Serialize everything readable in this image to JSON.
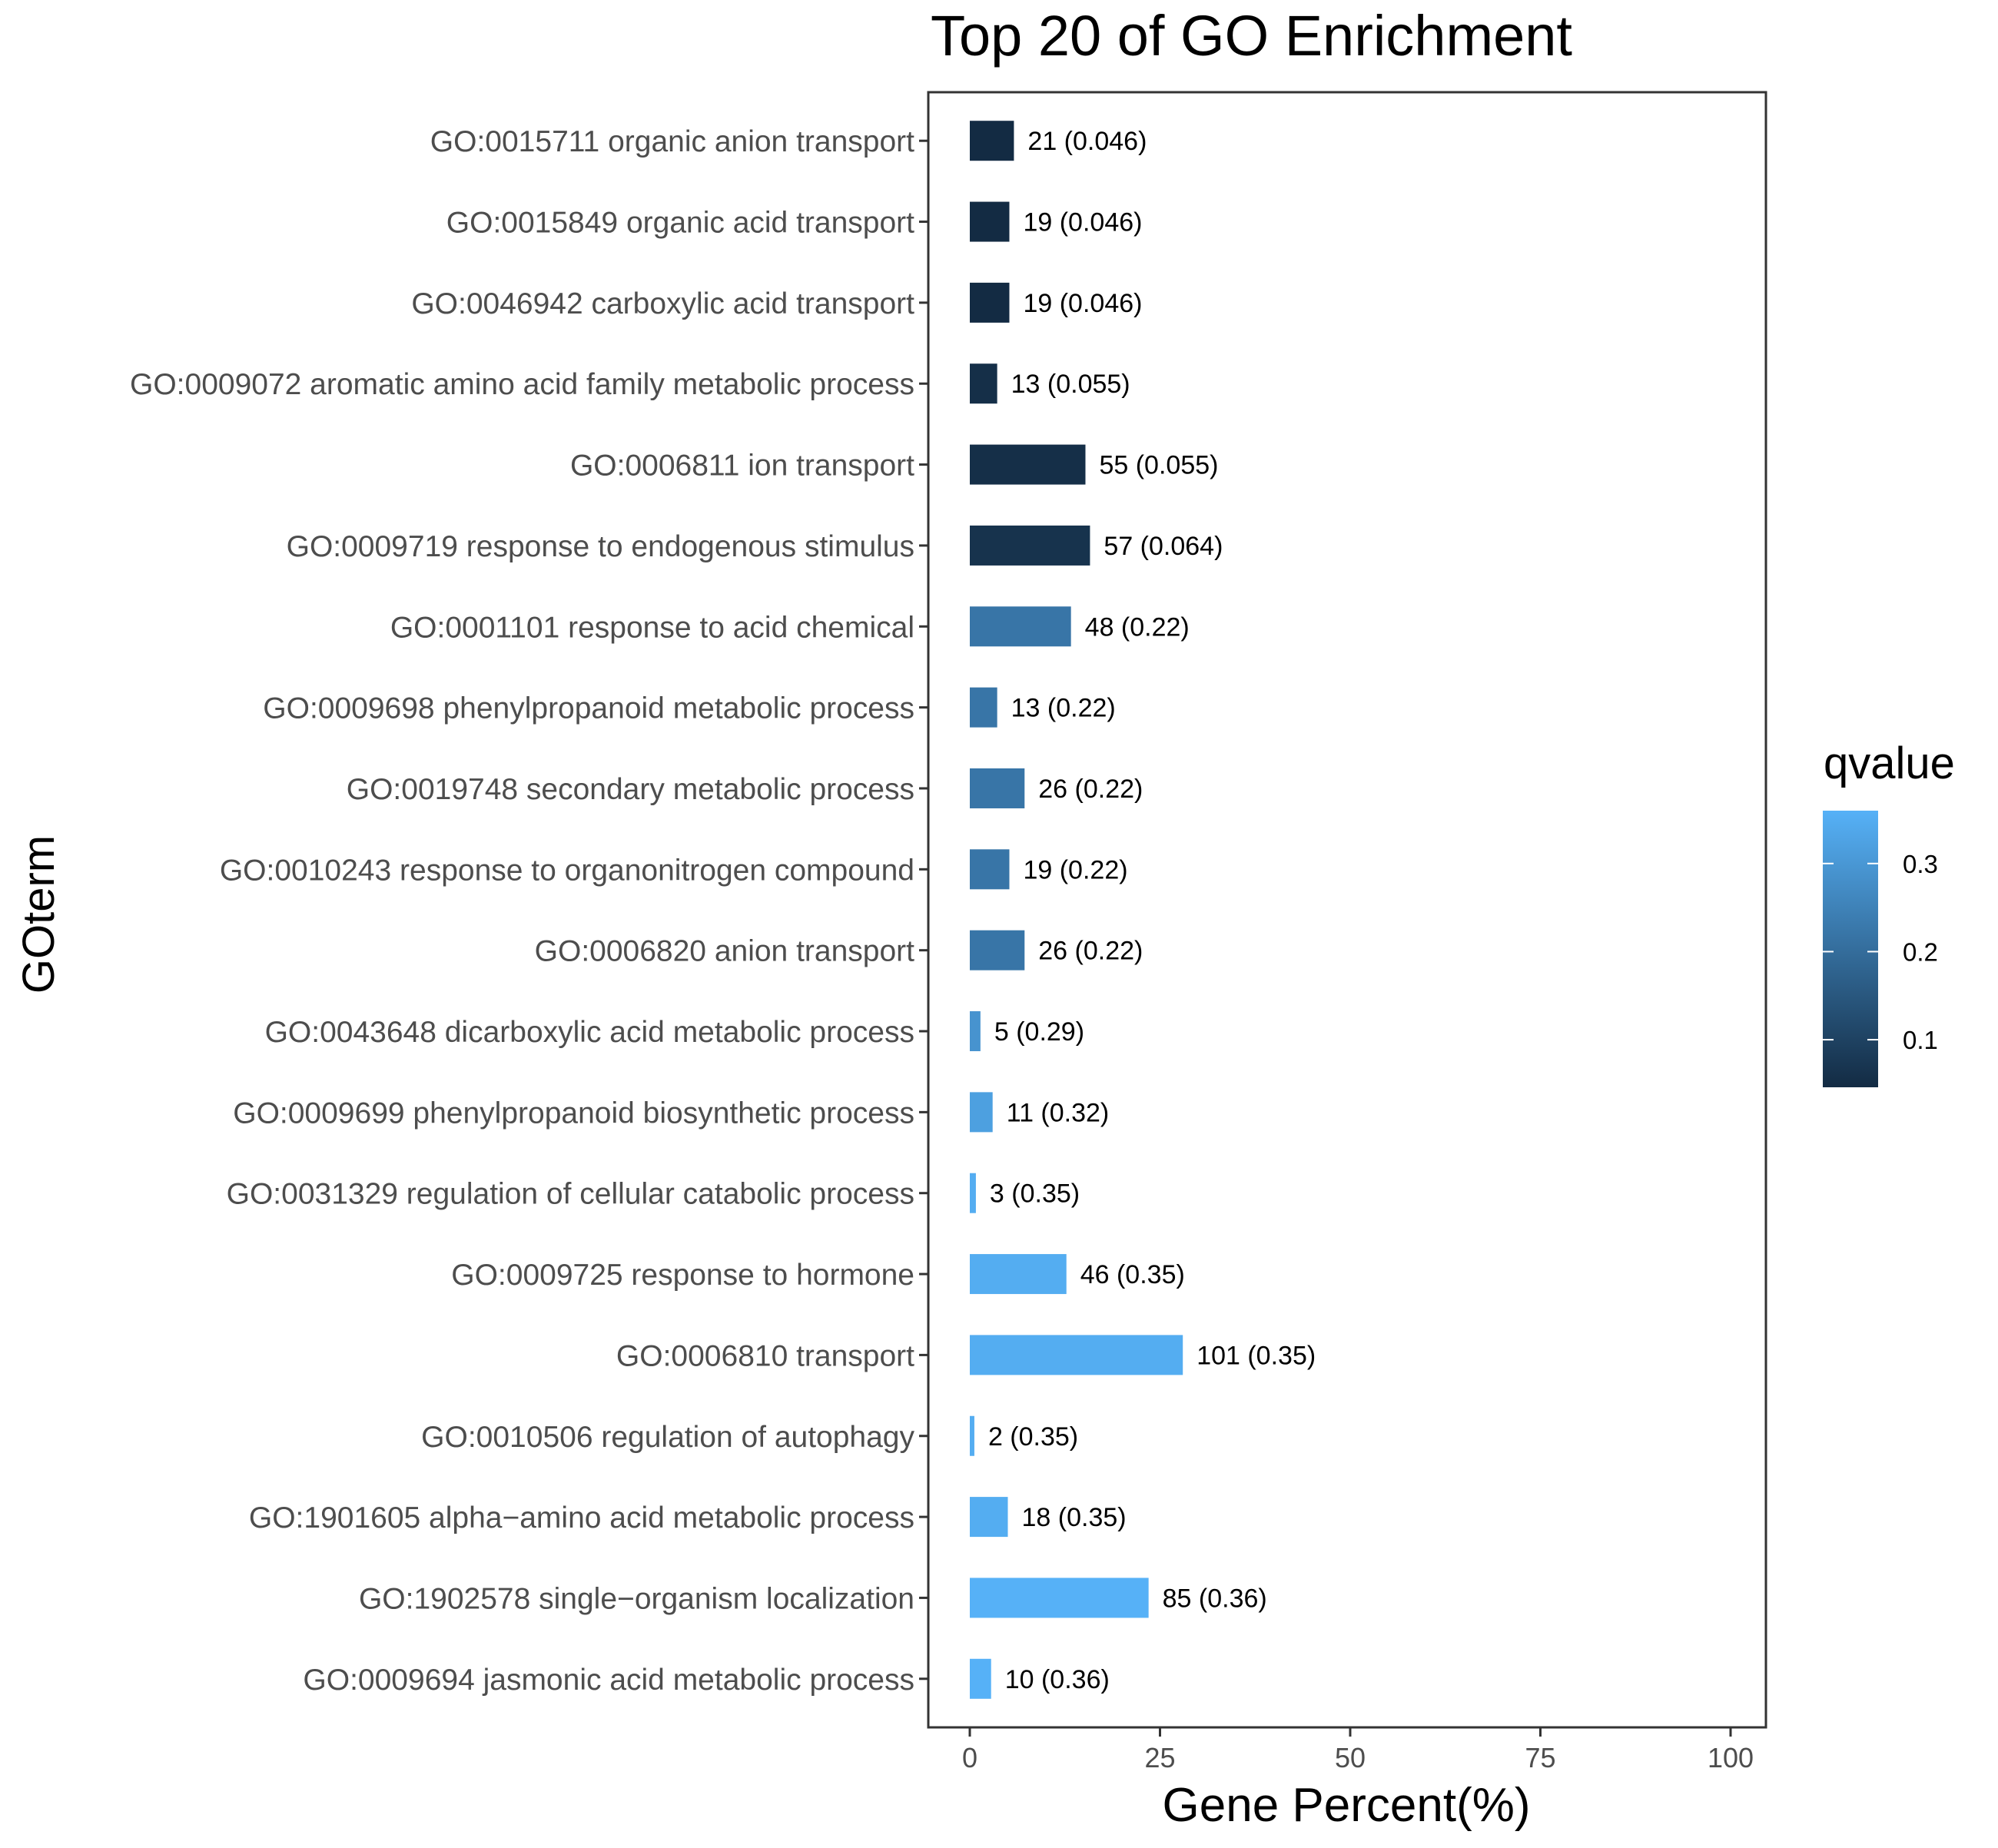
{
  "chart_data": {
    "type": "bar",
    "orientation": "horizontal",
    "title": "Top 20 of GO Enrichment",
    "xlabel": "Gene Percent(%)",
    "ylabel": "GOterm",
    "xlim": [
      0,
      100
    ],
    "xticks": [
      "0",
      "25",
      "50",
      "75",
      "100"
    ],
    "grid": false,
    "legend": {
      "title": "qvalue",
      "placement": "right",
      "type": "colorbar",
      "range": [
        0.046,
        0.36
      ],
      "ticks": [
        "0.1",
        "0.2",
        "0.3"
      ],
      "tick_values": [
        0.1,
        0.2,
        0.3
      ],
      "color_low": "#132B43",
      "color_high": "#56B1F7"
    },
    "categories": [
      "GO:0015711 organic anion transport",
      "GO:0015849 organic acid transport",
      "GO:0046942 carboxylic acid transport",
      "GO:0009072 aromatic amino acid family metabolic process",
      "GO:0006811 ion transport",
      "GO:0009719 response to endogenous stimulus",
      "GO:0001101 response to acid chemical",
      "GO:0009698 phenylpropanoid metabolic process",
      "GO:0019748 secondary metabolic process",
      "GO:0010243 response to organonitrogen compound",
      "GO:0006820 anion transport",
      "GO:0043648 dicarboxylic acid metabolic process",
      "GO:0009699 phenylpropanoid biosynthetic process",
      "GO:0031329 regulation of cellular catabolic process",
      "GO:0009725 response to hormone",
      "GO:0006810 transport",
      "GO:0010506 regulation of autophagy",
      "GO:1901605 alpha−amino acid metabolic process",
      "GO:1902578 single−organism localization",
      "GO:0009694 jasmonic acid metabolic process"
    ],
    "values": [
      5.8,
      5.2,
      5.2,
      3.6,
      15.2,
      15.8,
      13.3,
      3.6,
      7.2,
      5.2,
      7.2,
      1.4,
      3.0,
      0.8,
      12.7,
      28.0,
      0.6,
      5.0,
      23.5,
      2.8
    ],
    "counts": [
      21,
      19,
      19,
      13,
      55,
      57,
      48,
      13,
      26,
      19,
      26,
      5,
      11,
      3,
      46,
      101,
      2,
      18,
      85,
      10
    ],
    "qvalues": [
      0.046,
      0.046,
      0.046,
      0.055,
      0.055,
      0.064,
      0.22,
      0.22,
      0.22,
      0.22,
      0.22,
      0.29,
      0.32,
      0.35,
      0.35,
      0.35,
      0.35,
      0.35,
      0.36,
      0.36
    ],
    "data_labels": [
      "21 (0.046)",
      "19 (0.046)",
      "19 (0.046)",
      "13 (0.055)",
      "55 (0.055)",
      "57 (0.064)",
      "48 (0.22)",
      "13 (0.22)",
      "26 (0.22)",
      "19 (0.22)",
      "26 (0.22)",
      "5 (0.29)",
      "11 (0.32)",
      "3 (0.35)",
      "46 (0.35)",
      "101 (0.35)",
      "2 (0.35)",
      "18 (0.35)",
      "85 (0.36)",
      "10 (0.36)"
    ]
  }
}
